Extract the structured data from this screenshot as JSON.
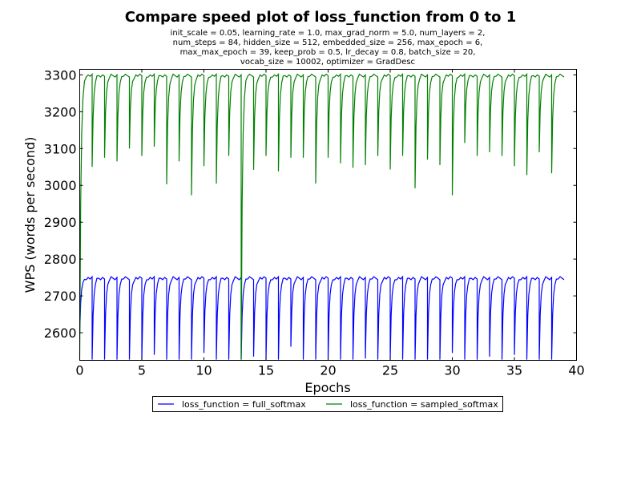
{
  "chart_data": {
    "type": "line",
    "title": "Compare speed plot of loss_function from 0 to 1",
    "subtitle_lines": [
      "init_scale = 0.05, learning_rate = 1.0, max_grad_norm = 5.0, num_layers = 2,",
      "num_steps = 84, hidden_size = 512, embedded_size = 256, max_epoch = 6,",
      "max_max_epoch = 39, keep_prob = 0.5, lr_decay = 0.8, batch_size = 20,",
      "vocab_size = 10002, optimizer = GradDesc"
    ],
    "xlabel": "Epochs",
    "ylabel": "WPS (words per second)",
    "xlim": [
      0,
      40
    ],
    "ylim": [
      2525,
      3315
    ],
    "x_ticks": [
      0,
      5,
      10,
      15,
      20,
      25,
      30,
      35,
      40
    ],
    "y_ticks": [
      2600,
      2700,
      2800,
      2900,
      3000,
      3100,
      3200,
      3300
    ],
    "x_tick_labels": [
      "0",
      "5",
      "10",
      "15",
      "20",
      "25",
      "30",
      "35",
      "40"
    ],
    "y_tick_labels": [
      "2600",
      "2700",
      "2800",
      "2900",
      "3000",
      "3100",
      "3200",
      "3300"
    ],
    "grid": false,
    "legend_placement": "bottom-center (below axes)",
    "series": [
      {
        "name": "loss_function = full_softmax",
        "color": "#0000ff",
        "epochs": 39,
        "plateau": 2748,
        "epoch_start_values": [
          2600,
          2527,
          2527,
          2527,
          2527,
          2527,
          2540,
          2527,
          2527,
          2527,
          2545,
          2527,
          2527,
          2527,
          2535,
          2527,
          2527,
          2562,
          2527,
          2527,
          2527,
          2527,
          2527,
          2530,
          2527,
          2527,
          2527,
          2527,
          2527,
          2527,
          2545,
          2527,
          2527,
          2535,
          2527,
          2540,
          2527,
          2527,
          2527
        ]
      },
      {
        "name": "loss_function = sampled_softmax",
        "color": "#008000",
        "epochs": 39,
        "plateau": 3298,
        "epoch_start_values": [
          2527,
          3050,
          3075,
          3065,
          3100,
          3080,
          3105,
          3003,
          3065,
          2973,
          3052,
          3005,
          3080,
          2527,
          3042,
          3080,
          3038,
          3075,
          3075,
          3005,
          3075,
          3060,
          3048,
          3055,
          3080,
          3043,
          3080,
          2992,
          3070,
          3055,
          2973,
          3115,
          3080,
          3090,
          3080,
          3052,
          3028,
          3090,
          3033
        ]
      }
    ]
  }
}
